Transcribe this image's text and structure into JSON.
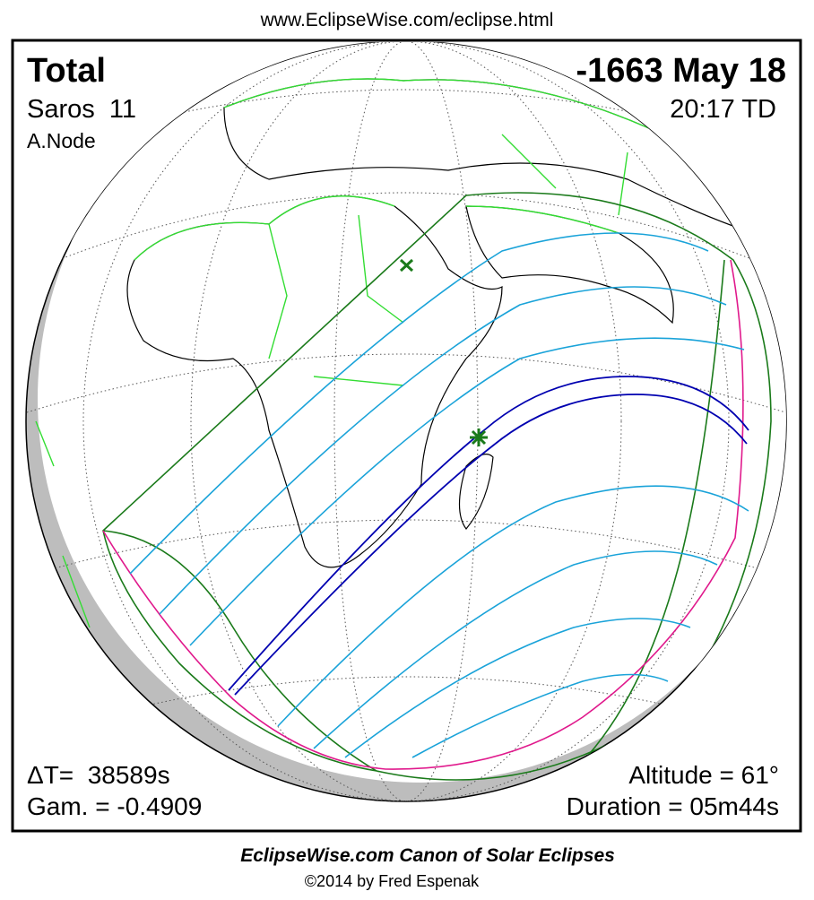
{
  "header": {
    "url": "www.EclipseWise.com/eclipse.html"
  },
  "panel": {
    "eclipse_type": "Total",
    "date": "-1663 May 18",
    "saros": "Saros  11",
    "time": "20:17 TD",
    "node": "A.Node",
    "delta_t": "ΔT=  38589s",
    "gamma": "Gam. = -0.4909",
    "altitude": "Altitude = 61°",
    "duration": "Duration = 05m44s"
  },
  "footer": {
    "title": "EclipseWise.com Canon of Solar Eclipses",
    "credit": "©2014 by Fred Espenak"
  }
}
